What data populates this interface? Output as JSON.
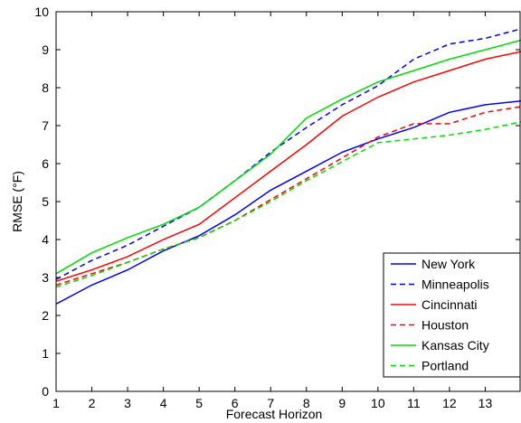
{
  "chart_data": {
    "type": "line",
    "title": "",
    "xlabel": "Forecast Horizon",
    "ylabel": "RMSE (°F)",
    "xlim": [
      1,
      14
    ],
    "ylim": [
      0,
      10
    ],
    "xticks": [
      1,
      2,
      3,
      4,
      5,
      6,
      7,
      8,
      9,
      10,
      11,
      12,
      13
    ],
    "yticks": [
      0,
      1,
      2,
      3,
      4,
      5,
      6,
      7,
      8,
      9,
      10
    ],
    "grid": false,
    "legend_position": "bottom-right",
    "x": [
      1,
      2,
      3,
      4,
      5,
      6,
      7,
      8,
      9,
      10,
      11,
      12,
      13,
      14
    ],
    "series": [
      {
        "name": "New York",
        "color": "#0000ff",
        "dash": "solid",
        "values": [
          2.3,
          2.8,
          3.2,
          3.7,
          4.1,
          4.65,
          5.3,
          5.8,
          6.3,
          6.65,
          6.95,
          7.35,
          7.55,
          7.65
        ]
      },
      {
        "name": "Minneapolis",
        "color": "#0000ff",
        "dash": "dashed",
        "values": [
          2.95,
          3.45,
          3.85,
          4.35,
          4.85,
          5.55,
          6.3,
          6.95,
          7.55,
          8.05,
          8.75,
          9.15,
          9.3,
          9.55
        ]
      },
      {
        "name": "Cincinnati",
        "color": "#ff0000",
        "dash": "solid",
        "values": [
          2.9,
          3.2,
          3.55,
          4.0,
          4.4,
          5.1,
          5.8,
          6.5,
          7.25,
          7.75,
          8.15,
          8.45,
          8.75,
          8.95
        ]
      },
      {
        "name": "Houston",
        "color": "#ff0000",
        "dash": "dashed",
        "values": [
          2.8,
          3.1,
          3.4,
          3.75,
          4.05,
          4.5,
          5.05,
          5.6,
          6.15,
          6.7,
          7.05,
          7.05,
          7.35,
          7.5
        ]
      },
      {
        "name": "Kansas City",
        "color": "#00dd00",
        "dash": "solid",
        "values": [
          3.1,
          3.65,
          4.05,
          4.4,
          4.85,
          5.55,
          6.25,
          7.2,
          7.7,
          8.15,
          8.45,
          8.75,
          9.0,
          9.25
        ]
      },
      {
        "name": "Portland",
        "color": "#00dd00",
        "dash": "dashed",
        "values": [
          2.75,
          3.05,
          3.4,
          3.75,
          4.05,
          4.5,
          5.0,
          5.55,
          6.05,
          6.55,
          6.65,
          6.75,
          6.9,
          7.1
        ]
      }
    ]
  }
}
